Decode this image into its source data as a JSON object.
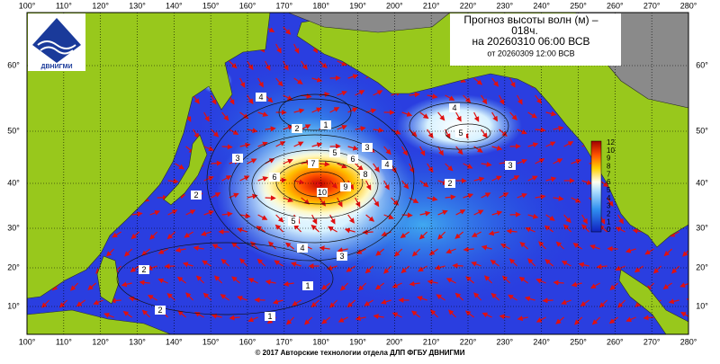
{
  "header": {
    "title": "Прогноз высоты волн (м) –",
    "lead": "018ч.",
    "valid": "на 20260310 06:00 ВСВ",
    "issued": "от 20260309 12:00 ВСВ"
  },
  "logo": {
    "text": "ДВНИГМИ"
  },
  "map": {
    "lon_labels": [
      "100°",
      "110°",
      "120°",
      "130°",
      "140°",
      "150°",
      "160°",
      "170°",
      "180°",
      "190°",
      "200°",
      "210°",
      "220°",
      "230°",
      "240°",
      "250°",
      "260°",
      "270°",
      "280°"
    ],
    "lat_labels": [
      "60°",
      "50°",
      "40°",
      "30°",
      "20°",
      "10°"
    ],
    "contour_labels": [
      "10",
      "9",
      "8",
      "7",
      "6",
      "6",
      "5",
      "5",
      "4",
      "4",
      "4",
      "3",
      "3",
      "3",
      "2",
      "2",
      "2",
      "2",
      "2",
      "1",
      "1",
      "1",
      "4",
      "5",
      "3"
    ]
  },
  "colorbar": {
    "labels": [
      "12",
      "10",
      "9",
      "8",
      "7",
      "6",
      "5",
      "4",
      "3",
      "2",
      "1",
      "0"
    ]
  },
  "footer": {
    "copyright": "© 2017 Авторские технологии отдела ДЛП ФГБУ ДВНИГМИ"
  }
}
